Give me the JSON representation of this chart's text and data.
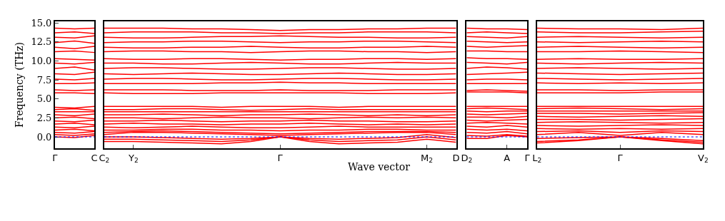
{
  "chart_data": [
    {
      "type": "line",
      "ylabel": "Frequency (THz)",
      "color": "#ff0000",
      "categories": [
        "Γ",
        null,
        "C"
      ],
      "ylim": [
        -1.5,
        15.2
      ],
      "yticks": [
        {
          "value": 0,
          "label": "0.0"
        },
        2.5,
        {
          "value": 5,
          "label": "5.0"
        },
        7.5,
        {
          "value": 10,
          "label": "10.0"
        },
        12.5,
        {
          "value": 15,
          "label": "15.0"
        }
      ],
      "ref_lines": [
        {
          "axis": "y",
          "value": 0,
          "color": "#0000ff",
          "line_style": "dotted"
        }
      ],
      "series": [
        {
          "values": [
            0,
            -0.1,
            0.2
          ]
        },
        {
          "values": [
            0.3,
            0.2,
            0.4
          ]
        },
        {
          "values": [
            0.6,
            0.5,
            0.7
          ]
        },
        {
          "values": [
            0.9,
            1.0,
            0.8
          ]
        },
        {
          "values": [
            1.3,
            1.2,
            1.4
          ]
        },
        {
          "values": [
            1.7,
            1.8,
            1.6
          ]
        },
        {
          "values": [
            2.1,
            2.0,
            2.2
          ]
        },
        {
          "values": [
            2.5,
            2.6,
            2.4
          ]
        },
        {
          "values": [
            2.9,
            2.8,
            3.0
          ]
        },
        {
          "values": [
            3.3,
            3.3,
            3.3
          ]
        },
        {
          "values": [
            3.6,
            3.7,
            3.5
          ]
        },
        {
          "values": [
            3.9,
            3.8,
            4.0
          ]
        },
        {
          "values": [
            5.8,
            5.8,
            5.7
          ]
        },
        {
          "values": [
            6.2,
            6.1,
            6.2
          ]
        },
        {
          "values": [
            7.0,
            7.0,
            7.1
          ]
        },
        {
          "values": [
            7.6,
            7.5,
            7.7
          ]
        },
        {
          "values": [
            8.3,
            8.2,
            8.5
          ]
        },
        {
          "values": [
            9.0,
            9.2,
            8.8
          ]
        },
        {
          "values": [
            9.7,
            9.6,
            9.8
          ]
        },
        {
          "values": [
            10.3,
            10.2,
            10.1
          ]
        },
        {
          "values": [
            11.2,
            11.3,
            11.1
          ]
        },
        {
          "values": [
            11.8,
            11.6,
            11.9
          ]
        },
        {
          "values": [
            12.4,
            12.6,
            12.3
          ]
        },
        {
          "values": [
            13.1,
            13.0,
            13.3
          ]
        },
        {
          "values": [
            13.7,
            13.8,
            13.6
          ]
        },
        {
          "values": [
            14.3,
            14.2,
            14.3
          ]
        }
      ]
    },
    {
      "type": "line",
      "xlabel": "Wave vector",
      "tick_labels": "x",
      "color": "#ff0000",
      "categories": [
        "C$_{2}$",
        "Y$_{2}$",
        null,
        null,
        null,
        null,
        "Γ",
        null,
        null,
        null,
        null,
        "M$_{2}$",
        "D"
      ],
      "ylim": [
        -1.5,
        15.2
      ],
      "ref_lines": [
        {
          "axis": "y",
          "value": 0,
          "color": "#0000ff",
          "line_style": "dotted"
        }
      ],
      "series": [
        {
          "values": [
            0.0,
            0.0,
            -0.1,
            -0.2,
            -0.3,
            -0.2,
            0.0,
            -0.2,
            -0.3,
            -0.2,
            -0.1,
            0.3,
            -0.1
          ]
        },
        {
          "values": [
            -0.3,
            -0.3,
            -0.4,
            -0.5,
            -0.6,
            -0.4,
            0.0,
            -0.4,
            -0.6,
            -0.5,
            -0.4,
            0.0,
            -0.4
          ]
        },
        {
          "values": [
            -0.6,
            -0.6,
            -0.7,
            -0.8,
            -0.9,
            -0.6,
            0.0,
            -0.6,
            -0.9,
            -0.8,
            -0.7,
            -0.3,
            -0.7
          ]
        },
        {
          "values": [
            0.3,
            0.6,
            0.6,
            0.5,
            0.4,
            0.3,
            0.2,
            0.3,
            0.4,
            0.5,
            0.6,
            0.6,
            0.3
          ]
        },
        {
          "values": [
            0.6,
            0.7,
            0.8,
            0.7,
            0.6,
            0.5,
            0.4,
            0.5,
            0.6,
            0.7,
            0.7,
            0.7,
            0.6
          ]
        },
        {
          "values": [
            0.9,
            0.9,
            1.0,
            1.0,
            0.9,
            0.9,
            0.8,
            0.9,
            0.9,
            1.0,
            1.0,
            0.9,
            0.9
          ]
        },
        {
          "values": [
            1.3,
            1.2,
            1.3,
            1.4,
            1.3,
            1.2,
            1.2,
            1.3,
            1.4,
            1.3,
            1.3,
            1.3,
            1.3
          ]
        },
        {
          "values": [
            1.7,
            1.8,
            1.7,
            1.7,
            1.6,
            1.7,
            1.7,
            1.8,
            1.7,
            1.6,
            1.7,
            1.6,
            1.7
          ]
        },
        {
          "values": [
            2.1,
            2.1,
            2.2,
            2.1,
            2.0,
            2.1,
            2.1,
            2.2,
            2.1,
            2.1,
            2.0,
            2.0,
            2.1
          ]
        },
        {
          "values": [
            2.5,
            2.5,
            2.4,
            2.5,
            2.6,
            2.5,
            2.5,
            2.4,
            2.5,
            2.6,
            2.5,
            2.6,
            2.5
          ]
        },
        {
          "values": [
            2.9,
            2.9,
            3.0,
            2.9,
            2.8,
            2.9,
            2.9,
            3.0,
            2.9,
            2.8,
            2.9,
            2.8,
            2.9
          ]
        },
        {
          "values": [
            3.3,
            3.3,
            3.3,
            3.3,
            3.3,
            3.3,
            3.3,
            3.3,
            3.3,
            3.3,
            3.3,
            3.3,
            3.3
          ]
        },
        {
          "values": [
            3.6,
            3.6,
            3.7,
            3.7,
            3.6,
            3.5,
            3.6,
            3.7,
            3.6,
            3.6,
            3.6,
            3.6,
            3.6
          ]
        },
        {
          "values": [
            4.0,
            4.0,
            4.0,
            4.0,
            3.9,
            4.0,
            4.0,
            4.0,
            3.9,
            4.0,
            4.0,
            4.0,
            4.0
          ]
        },
        {
          "values": [
            5.8,
            5.7,
            5.7,
            5.7,
            5.8,
            5.8,
            5.8,
            5.8,
            5.8,
            5.7,
            5.7,
            5.7,
            5.8
          ]
        },
        {
          "values": [
            6.2,
            6.2,
            6.2,
            6.1,
            6.1,
            6.1,
            6.2,
            6.1,
            6.1,
            6.1,
            6.2,
            6.2,
            6.2
          ]
        },
        {
          "values": [
            7.0,
            7.0,
            7.0,
            7.0,
            7.1,
            7.1,
            7.2,
            7.1,
            7.1,
            7.0,
            7.0,
            7.0,
            7.0
          ]
        },
        {
          "values": [
            7.6,
            7.7,
            7.7,
            7.6,
            7.5,
            7.5,
            7.6,
            7.7,
            7.7,
            7.6,
            7.5,
            7.5,
            7.6
          ]
        },
        {
          "values": [
            8.3,
            8.2,
            8.3,
            8.4,
            8.3,
            8.2,
            8.2,
            8.3,
            8.4,
            8.3,
            8.2,
            8.2,
            8.3
          ]
        },
        {
          "values": [
            9.0,
            9.1,
            9.1,
            9.0,
            8.9,
            8.9,
            9.0,
            9.1,
            9.1,
            9.0,
            8.9,
            8.9,
            9.0
          ]
        },
        {
          "values": [
            9.7,
            9.7,
            9.6,
            9.6,
            9.7,
            9.8,
            9.7,
            9.6,
            9.6,
            9.7,
            9.8,
            9.7,
            9.7
          ]
        },
        {
          "values": [
            10.3,
            10.2,
            10.2,
            10.3,
            10.3,
            10.2,
            10.1,
            10.2,
            10.2,
            10.3,
            10.3,
            10.2,
            10.3
          ]
        },
        {
          "values": [
            11.2,
            11.3,
            11.3,
            11.2,
            11.2,
            11.1,
            11.2,
            11.3,
            11.3,
            11.2,
            11.2,
            11.1,
            11.2
          ]
        },
        {
          "values": [
            11.8,
            11.7,
            11.7,
            11.8,
            11.8,
            11.9,
            11.8,
            11.7,
            11.7,
            11.8,
            11.8,
            11.9,
            11.8
          ]
        },
        {
          "values": [
            12.4,
            12.5,
            12.5,
            12.6,
            12.6,
            12.5,
            12.4,
            12.5,
            12.5,
            12.6,
            12.6,
            12.5,
            12.4
          ]
        },
        {
          "values": [
            13.1,
            13.0,
            13.0,
            13.1,
            13.2,
            13.2,
            13.3,
            13.2,
            13.1,
            13.1,
            13.0,
            13.0,
            13.1
          ]
        },
        {
          "values": [
            13.7,
            13.8,
            13.8,
            13.8,
            13.7,
            13.7,
            13.6,
            13.7,
            13.7,
            13.8,
            13.8,
            13.8,
            13.7
          ]
        },
        {
          "values": [
            14.3,
            14.3,
            14.3,
            14.2,
            14.2,
            14.1,
            14.0,
            14.1,
            14.1,
            14.2,
            14.2,
            14.3,
            14.3
          ]
        }
      ]
    },
    {
      "type": "line",
      "tick_labels": "x",
      "color": "#ff0000",
      "categories": [
        "D$_{2}$",
        null,
        "A",
        "Γ"
      ],
      "ylim": [
        -1.5,
        15.2
      ],
      "ref_lines": [
        {
          "axis": "y",
          "value": 0,
          "color": "#0000ff",
          "line_style": "dotted"
        }
      ],
      "series": [
        {
          "values": [
            -0.2,
            -0.2,
            0.2,
            0
          ]
        },
        {
          "values": [
            0.2,
            0.1,
            0.3,
            0.1
          ]
        },
        {
          "values": [
            0.6,
            0.5,
            0.7,
            0.4
          ]
        },
        {
          "values": [
            1.0,
            0.9,
            1.0,
            0.8
          ]
        },
        {
          "values": [
            1.4,
            1.3,
            1.5,
            1.3
          ]
        },
        {
          "values": [
            1.8,
            1.9,
            1.8,
            1.7
          ]
        },
        {
          "values": [
            2.2,
            2.1,
            2.2,
            2.3
          ]
        },
        {
          "values": [
            2.6,
            2.6,
            2.5,
            2.7
          ]
        },
        {
          "values": [
            3.0,
            2.9,
            3.0,
            3.1
          ]
        },
        {
          "values": [
            3.4,
            3.3,
            3.4,
            3.4
          ]
        },
        {
          "values": [
            3.7,
            3.8,
            3.7,
            3.6
          ]
        },
        {
          "values": [
            4.0,
            4.0,
            4.0,
            4.0
          ]
        },
        {
          "values": [
            5.9,
            5.9,
            5.9,
            5.8
          ]
        },
        {
          "values": [
            6.1,
            6.2,
            6.1,
            6.0
          ]
        },
        {
          "values": [
            7.0,
            7.0,
            7.0,
            7.0
          ]
        },
        {
          "values": [
            7.5,
            7.6,
            7.6,
            7.5
          ]
        },
        {
          "values": [
            8.2,
            8.3,
            8.4,
            8.5
          ]
        },
        {
          "values": [
            9.0,
            9.2,
            9.1,
            8.9
          ]
        },
        {
          "values": [
            9.8,
            9.7,
            9.6,
            9.8
          ]
        },
        {
          "values": [
            10.4,
            10.3,
            10.3,
            10.2
          ]
        },
        {
          "values": [
            11.3,
            11.3,
            11.2,
            11.2
          ]
        },
        {
          "values": [
            11.9,
            11.8,
            11.9,
            12.0
          ]
        },
        {
          "values": [
            12.6,
            12.5,
            12.4,
            12.5
          ]
        },
        {
          "values": [
            13.2,
            13.1,
            13.0,
            13.2
          ]
        },
        {
          "values": [
            13.7,
            13.8,
            13.7,
            13.6
          ]
        },
        {
          "values": [
            14.3,
            14.2,
            14.2,
            14.1
          ]
        }
      ]
    },
    {
      "type": "line",
      "tick_labels": "x",
      "color": "#ff0000",
      "categories": [
        "L$_{2}$",
        null,
        "Γ",
        null,
        "V$_{2}$"
      ],
      "ylim": [
        -1.5,
        15.2
      ],
      "ref_lines": [
        {
          "axis": "y",
          "value": 0,
          "color": "#0000ff",
          "line_style": "dotted"
        }
      ],
      "series": [
        {
          "values": [
            -0.8,
            -0.5,
            0,
            -0.5,
            -0.9
          ]
        },
        {
          "values": [
            -0.6,
            -0.4,
            0,
            -0.4,
            -0.7
          ]
        },
        {
          "values": [
            -0.2,
            -0.1,
            0,
            -0.2,
            -0.5
          ]
        },
        {
          "values": [
            0.3,
            0.6,
            0.2,
            0.6,
            0.3
          ]
        },
        {
          "values": [
            0.7,
            0.8,
            0.6,
            0.8,
            0.7
          ]
        },
        {
          "values": [
            1.1,
            1.0,
            1.1,
            1.0,
            1.1
          ]
        },
        {
          "values": [
            1.5,
            1.4,
            1.5,
            1.6,
            1.5
          ]
        },
        {
          "values": [
            1.9,
            2.0,
            1.9,
            1.8,
            1.9
          ]
        },
        {
          "values": [
            2.3,
            2.3,
            2.2,
            2.3,
            2.4
          ]
        },
        {
          "values": [
            2.7,
            2.6,
            2.7,
            2.8,
            2.7
          ]
        },
        {
          "values": [
            3.1,
            3.1,
            3.0,
            3.1,
            3.2
          ]
        },
        {
          "values": [
            3.4,
            3.4,
            3.4,
            3.4,
            3.4
          ]
        },
        {
          "values": [
            3.7,
            3.8,
            3.7,
            3.6,
            3.7
          ]
        },
        {
          "values": [
            4.0,
            4.0,
            4.0,
            4.0,
            4.0
          ]
        },
        {
          "values": [
            5.8,
            5.8,
            5.8,
            5.9,
            5.9
          ]
        },
        {
          "values": [
            6.2,
            6.2,
            6.1,
            6.2,
            6.2
          ]
        },
        {
          "values": [
            7.1,
            7.0,
            7.1,
            7.0,
            7.1
          ]
        },
        {
          "values": [
            7.7,
            7.6,
            7.5,
            7.6,
            7.7
          ]
        },
        {
          "values": [
            8.4,
            8.3,
            8.2,
            8.3,
            8.4
          ]
        },
        {
          "values": [
            9.0,
            9.1,
            9.0,
            8.9,
            9.0
          ]
        },
        {
          "values": [
            9.7,
            9.6,
            9.7,
            9.8,
            9.7
          ]
        },
        {
          "values": [
            10.2,
            10.3,
            10.2,
            10.2,
            10.3
          ]
        },
        {
          "values": [
            11.2,
            11.2,
            11.3,
            11.2,
            11.1
          ]
        },
        {
          "values": [
            11.8,
            11.9,
            11.8,
            11.7,
            11.8
          ]
        },
        {
          "values": [
            12.5,
            12.4,
            12.5,
            12.6,
            12.5
          ]
        },
        {
          "values": [
            13.1,
            13.2,
            13.1,
            13.0,
            13.1
          ]
        },
        {
          "values": [
            13.8,
            13.7,
            13.7,
            13.8,
            13.9
          ]
        },
        {
          "values": [
            14.3,
            14.2,
            14.2,
            14.1,
            14.3
          ]
        }
      ]
    }
  ]
}
